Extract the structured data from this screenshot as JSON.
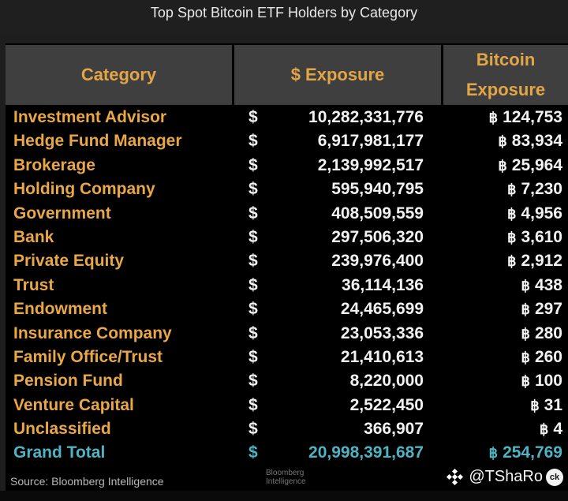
{
  "title": "Top Spot Bitcoin ETF Holders by Category",
  "table": {
    "headers": {
      "category": "Category",
      "usd_exposure": "$ Exposure",
      "btc_exposure_line1": "Bitcoin",
      "btc_exposure_line2": "Exposure"
    },
    "currency_symbol": "$",
    "bitcoin_symbol": "฿",
    "rows": [
      {
        "category": "Investment Advisor",
        "usd": "10,282,331,776",
        "btc": "124,753"
      },
      {
        "category": "Hedge Fund Manager",
        "usd": "6,917,981,177",
        "btc": "83,934"
      },
      {
        "category": "Brokerage",
        "usd": "2,139,992,517",
        "btc": "25,964"
      },
      {
        "category": "Holding Company",
        "usd": "595,940,795",
        "btc": "7,230"
      },
      {
        "category": "Government",
        "usd": "408,509,559",
        "btc": "4,956"
      },
      {
        "category": "Bank",
        "usd": "297,506,320",
        "btc": "3,610"
      },
      {
        "category": "Private Equity",
        "usd": "239,976,400",
        "btc": "2,912"
      },
      {
        "category": "Trust",
        "usd": "36,114,136",
        "btc": "438"
      },
      {
        "category": "Endowment",
        "usd": "24,465,699",
        "btc": "297"
      },
      {
        "category": "Insurance Company",
        "usd": "23,053,336",
        "btc": "280"
      },
      {
        "category": "Family Office/Trust",
        "usd": "21,410,613",
        "btc": "260"
      },
      {
        "category": "Pension Fund",
        "usd": "8,220,000",
        "btc": "100"
      },
      {
        "category": "Venture Capital",
        "usd": "2,522,450",
        "btc": "31"
      },
      {
        "category": "Unclassified",
        "usd": "366,907",
        "btc": "4"
      }
    ],
    "total": {
      "category": "Grand Total",
      "usd": "20,998,391,687",
      "btc": "254,769"
    }
  },
  "source": "Source: Bloomberg Intelligence",
  "watermark": {
    "handle": "@TShaRo",
    "badge": "ck",
    "ghost_line1": "Bloomberg",
    "ghost_line2": "Intelligence",
    "logo_icon": "binance-logo-icon"
  },
  "colors": {
    "category_text": "#e9a747",
    "header_text": "#e3a546",
    "header_bg": "#3f3f3f",
    "value_text": "#f2f2f2",
    "total_text": "#4fb3c3",
    "table_bg": "#000000"
  }
}
